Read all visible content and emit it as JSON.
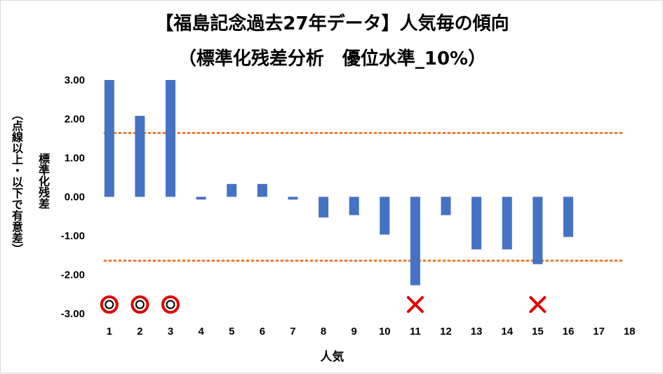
{
  "chart_data": {
    "type": "bar",
    "title": "【福島記念過去27年データ】人気毎の傾向",
    "subtitle": "（標準化残差分析　優位水準_10%）",
    "xlabel": "人気",
    "ylabel_lines": [
      "標準化残差",
      "（点線以上・以下で有意差）"
    ],
    "categories": [
      "1",
      "2",
      "3",
      "4",
      "5",
      "6",
      "7",
      "8",
      "9",
      "10",
      "11",
      "12",
      "13",
      "14",
      "15",
      "16",
      "17",
      "18"
    ],
    "values": [
      3.0,
      2.08,
      3.0,
      -0.07,
      0.33,
      0.33,
      -0.07,
      -0.53,
      -0.47,
      -0.97,
      -2.27,
      -0.47,
      -1.35,
      -1.35,
      -1.73,
      -1.03,
      null,
      null
    ],
    "ylim": [
      -3.0,
      3.0
    ],
    "yticks": [
      "3.00",
      "2.00",
      "1.00",
      "0.00",
      "-1.00",
      "-2.00",
      "-3.00"
    ],
    "threshold_lines": [
      1.64,
      -1.64
    ],
    "bar_color": "#4472c4",
    "threshold_color": "#ed7d31",
    "markers": [
      {
        "category": "1",
        "symbol": "circle"
      },
      {
        "category": "2",
        "symbol": "circle"
      },
      {
        "category": "3",
        "symbol": "circle"
      },
      {
        "category": "11",
        "symbol": "cross"
      },
      {
        "category": "15",
        "symbol": "cross"
      }
    ],
    "marker_color": "#e00000",
    "grid": false
  }
}
